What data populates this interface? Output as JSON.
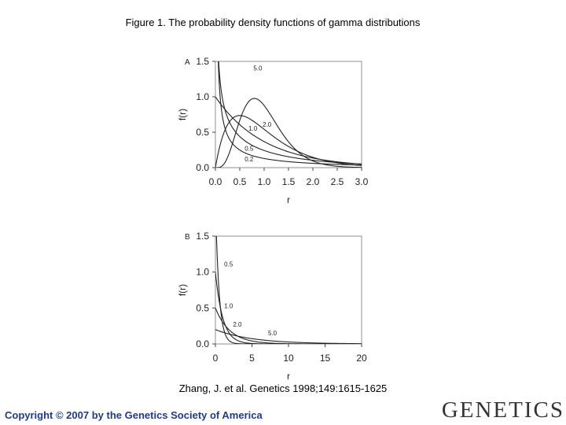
{
  "figure_title": "Figure 1. The probability density functions of gamma distributions",
  "citation": "Zhang, J. et al. Genetics 1998;149:1615-1625",
  "copyright": "Copyright © 2007 by the Genetics Society of America",
  "logo_text": "GENETICS",
  "chart_data": [
    {
      "type": "line",
      "panel_label": "A",
      "xlabel": "r",
      "ylabel": "f(r)",
      "xlim": [
        0,
        3.0
      ],
      "ylim": [
        0,
        1.5
      ],
      "xticks": [
        "0.0",
        "0.5",
        "1.0",
        "1.5",
        "2.0",
        "2.5",
        "3.0"
      ],
      "yticks": [
        "0.0",
        "0.5",
        "1.0",
        "1.5"
      ],
      "grid": false,
      "distribution": "gamma, mean 1",
      "series": [
        {
          "name": "0.2",
          "shape": 0.2
        },
        {
          "name": "0.5",
          "shape": 0.5
        },
        {
          "name": "1.0",
          "shape": 1.0
        },
        {
          "name": "2.0",
          "shape": 2.0
        },
        {
          "name": "5.0",
          "shape": 5.0
        }
      ]
    },
    {
      "type": "line",
      "panel_label": "B",
      "xlabel": "r",
      "ylabel": "f(r)",
      "xlim": [
        0,
        20
      ],
      "ylim": [
        0,
        1.5
      ],
      "xticks": [
        "0",
        "5",
        "10",
        "15",
        "20"
      ],
      "yticks": [
        "0.0",
        "0.5",
        "1.0",
        "1.5"
      ],
      "grid": false,
      "distribution": "gamma",
      "series": [
        {
          "name": "0.5",
          "mean": 0.5
        },
        {
          "name": "1.0",
          "mean": 1.0
        },
        {
          "name": "2.0",
          "mean": 2.0
        },
        {
          "name": "5.0",
          "mean": 5.0
        }
      ]
    }
  ]
}
